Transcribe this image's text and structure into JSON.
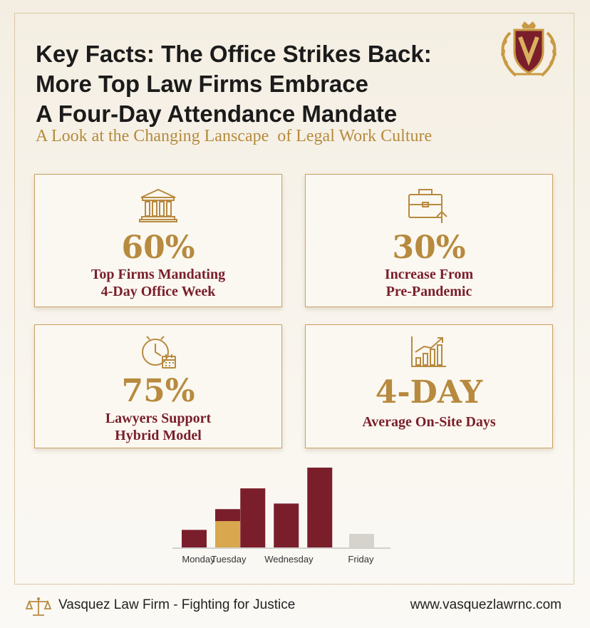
{
  "header": {
    "title": "Key Facts: The Office Strikes Back:\nMore Top Law Firms Embrace\n A Four-Day Attendance Mandate",
    "subtitle": "A Look at the Changing Lanscape  of Legal Work Culture"
  },
  "cards": [
    {
      "icon": "courthouse-icon",
      "value": "60%",
      "label": "Top Firms Mandating\n4-Day Office Week"
    },
    {
      "icon": "briefcase-arrow-icon",
      "value": "30%",
      "label": "Increase From\nPre-Pandemic"
    },
    {
      "icon": "calendar-clock-icon",
      "value": "75%",
      "label": "Lawyers Support\nHybrid Model"
    },
    {
      "icon": "rising-bar-chart-icon",
      "value": "4-DAY",
      "label": "Average On-Site Days"
    }
  ],
  "chart_data": {
    "type": "bar",
    "x_tick_labels": [
      "Monday",
      "Tuesday",
      "Wednesday",
      "Friday"
    ],
    "bars": [
      {
        "position": 0.0,
        "value": 22,
        "color": "#7a1e2b"
      },
      {
        "position": 1.0,
        "value": 48,
        "color": "#7a1e2b",
        "lower_segment": 33,
        "lower_color": "#d9a84e"
      },
      {
        "position": 1.75,
        "value": 74,
        "color": "#7a1e2b"
      },
      {
        "position": 2.75,
        "value": 55,
        "color": "#7a1e2b"
      },
      {
        "position": 3.75,
        "value": 100,
        "color": "#7a1e2b"
      },
      {
        "position": 5.0,
        "value": 17,
        "color": "#d6d2cc"
      }
    ],
    "tick_positions": [
      0.5,
      1.4,
      3.2,
      5.35
    ],
    "ylim": [
      0,
      100
    ],
    "grid": false
  },
  "footer": {
    "brand": "Vasquez Law Firm - Fighting for Justice",
    "website": "www.vasquezlawrnc.com"
  },
  "colors": {
    "gold": "#b78a3f",
    "burgundy": "#7a1e2b",
    "card_border": "#c9a062"
  }
}
